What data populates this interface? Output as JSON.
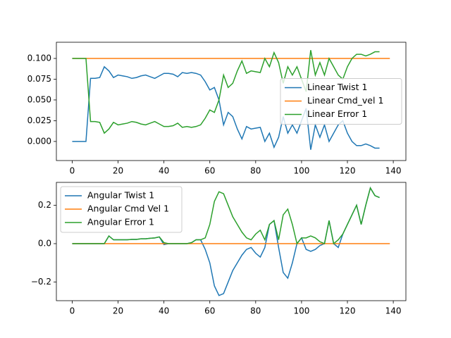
{
  "chart_data": [
    {
      "type": "line",
      "x": [
        0,
        2,
        4,
        6,
        8,
        10,
        12,
        14,
        16,
        18,
        20,
        22,
        24,
        26,
        28,
        30,
        32,
        34,
        36,
        38,
        40,
        42,
        44,
        46,
        48,
        50,
        52,
        54,
        56,
        58,
        60,
        62,
        64,
        66,
        68,
        70,
        72,
        74,
        76,
        78,
        80,
        82,
        84,
        86,
        88,
        90,
        92,
        94,
        96,
        98,
        100,
        102,
        104,
        106,
        108,
        110,
        112,
        114,
        116,
        118,
        120,
        122,
        124,
        126,
        128,
        130,
        132,
        134
      ],
      "series": [
        {
          "name": "Linear Twist 1",
          "color": "#1f77b4",
          "values": [
            0,
            0,
            0,
            0,
            0.076,
            0.076,
            0.077,
            0.09,
            0.085,
            0.077,
            0.08,
            0.079,
            0.078,
            0.076,
            0.077,
            0.079,
            0.08,
            0.078,
            0.076,
            0.079,
            0.082,
            0.082,
            0.081,
            0.078,
            0.083,
            0.082,
            0.083,
            0.082,
            0.08,
            0.072,
            0.062,
            0.065,
            0.05,
            0.02,
            0.035,
            0.03,
            0.015,
            0.003,
            0.018,
            0.015,
            0.016,
            0.017,
            0,
            0.01,
            -0.007,
            0.005,
            0.03,
            0.01,
            0.02,
            0.01,
            0.025,
            0.04,
            -0.01,
            0.02,
            0.005,
            0.02,
            0,
            0.01,
            0.02,
            0.025,
            0.01,
            0,
            -0.005,
            -0.005,
            -0.003,
            -0.005,
            -0.008,
            -0.008
          ]
        },
        {
          "name": "Linear Cmd_vel 1",
          "color": "#ff7f0e",
          "x": [
            0,
            138.5
          ],
          "values": [
            0.1,
            0.1
          ]
        },
        {
          "name": "Linear Error 1",
          "color": "#2ca02c",
          "values": [
            0.1,
            0.1,
            0.1,
            0.1,
            0.024,
            0.024,
            0.023,
            0.01,
            0.015,
            0.023,
            0.02,
            0.021,
            0.022,
            0.024,
            0.023,
            0.021,
            0.02,
            0.022,
            0.024,
            0.021,
            0.018,
            0.018,
            0.019,
            0.022,
            0.017,
            0.018,
            0.017,
            0.018,
            0.02,
            0.028,
            0.038,
            0.035,
            0.05,
            0.08,
            0.065,
            0.07,
            0.085,
            0.097,
            0.082,
            0.085,
            0.084,
            0.083,
            0.1,
            0.09,
            0.107,
            0.095,
            0.07,
            0.09,
            0.08,
            0.09,
            0.075,
            0.06,
            0.11,
            0.08,
            0.095,
            0.08,
            0.1,
            0.09,
            0.08,
            0.075,
            0.09,
            0.1,
            0.105,
            0.105,
            0.103,
            0.105,
            0.108,
            0.108
          ]
        }
      ],
      "xlim": [
        -6.9,
        145.5
      ],
      "ylim": [
        -0.023,
        0.1195
      ],
      "xticks": [
        0,
        20,
        40,
        60,
        80,
        100,
        120,
        140
      ],
      "yticks": [
        {
          "value": 0,
          "label": "0.000"
        },
        {
          "value": 0.025,
          "label": "0.025"
        },
        {
          "value": 0.05,
          "label": "0.050"
        },
        {
          "value": 0.075,
          "label": "0.075"
        },
        {
          "value": 0.1,
          "label": "0.100"
        }
      ],
      "legend": "center right"
    },
    {
      "type": "line",
      "x": [
        0,
        2,
        4,
        6,
        8,
        10,
        12,
        14,
        16,
        18,
        20,
        22,
        24,
        26,
        28,
        30,
        32,
        34,
        36,
        38,
        40,
        42,
        44,
        46,
        48,
        50,
        52,
        54,
        56,
        58,
        60,
        62,
        64,
        66,
        68,
        70,
        72,
        74,
        76,
        78,
        80,
        82,
        84,
        86,
        88,
        90,
        92,
        94,
        96,
        98,
        100,
        102,
        104,
        106,
        108,
        110,
        112,
        114,
        116,
        118,
        120,
        122,
        124,
        126,
        128,
        130,
        132,
        134
      ],
      "series": [
        {
          "name": "Angular Twist 1",
          "color": "#1f77b4",
          "values": [
            0,
            0,
            0,
            0,
            0,
            0,
            0,
            0,
            0.04,
            0.02,
            0.02,
            0.02,
            0.02,
            0.022,
            0.022,
            0.025,
            0.025,
            0.028,
            0.03,
            0.035,
            -0.005,
            0,
            0,
            0,
            0,
            0,
            0.005,
            0.02,
            0.02,
            -0.03,
            -0.1,
            -0.22,
            -0.27,
            -0.26,
            -0.2,
            -0.14,
            -0.1,
            -0.06,
            -0.03,
            -0.02,
            -0.05,
            -0.07,
            -0.02,
            0.1,
            0.12,
            -0.02,
            -0.15,
            -0.18,
            -0.1,
            0,
            0.03,
            -0.03,
            -0.04,
            -0.03,
            -0.01,
            0,
            0.12,
            0,
            -0.02,
            0.05,
            0.1,
            0.15,
            0.2,
            0.1,
            0.2,
            0.29,
            0.25,
            0.24
          ]
        },
        {
          "name": "Angular Cmd Vel 1",
          "color": "#ff7f0e",
          "x": [
            0,
            138.5
          ],
          "values": [
            0,
            0
          ]
        },
        {
          "name": "Angular Error 1",
          "color": "#2ca02c",
          "values": [
            0,
            0,
            0,
            0,
            0,
            0,
            0,
            0,
            0.04,
            0.02,
            0.02,
            0.02,
            0.02,
            0.022,
            0.022,
            0.025,
            0.025,
            0.028,
            0.03,
            0.035,
            0.005,
            0,
            0,
            0,
            0,
            0,
            0.005,
            0.02,
            0.02,
            0.03,
            0.1,
            0.22,
            0.27,
            0.26,
            0.2,
            0.14,
            0.1,
            0.06,
            0.03,
            0.02,
            0.05,
            0.07,
            0.02,
            0.1,
            0.12,
            0.02,
            0.15,
            0.18,
            0.1,
            0,
            0.03,
            0.03,
            0.04,
            0.03,
            0.01,
            0,
            0.12,
            0,
            0.02,
            0.05,
            0.1,
            0.15,
            0.2,
            0.1,
            0.2,
            0.29,
            0.25,
            0.24
          ]
        }
      ],
      "xlim": [
        -6.9,
        145.5
      ],
      "ylim": [
        -0.297,
        0.319
      ],
      "xticks": [
        0,
        20,
        40,
        60,
        80,
        100,
        120,
        140
      ],
      "yticks": [
        {
          "value": -0.2,
          "label": "−0.2"
        },
        {
          "value": 0,
          "label": "0.0"
        },
        0.2
      ],
      "legend": "upper left"
    }
  ]
}
